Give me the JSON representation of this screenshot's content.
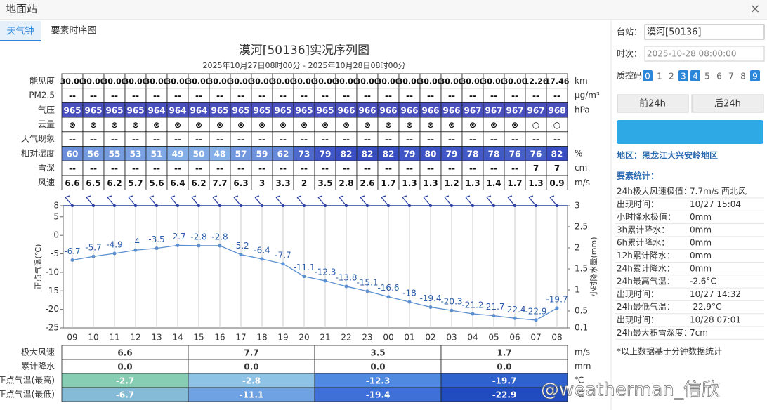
{
  "header": {
    "title": "地面站",
    "close": "×"
  },
  "tabs": [
    "天气钟",
    "要素时序图"
  ],
  "chart_data": {
    "type": "line",
    "title": "漠河[50136]实况序列图",
    "subtitle": "2025年10月27日08时00分 - 2025年10月28日08时00分",
    "y_label": "正点气温(℃)",
    "y2_label": "小时降水量(mm)",
    "categories": [
      "09",
      "10",
      "11",
      "12",
      "13",
      "14",
      "15",
      "16",
      "17",
      "18",
      "19",
      "20",
      "21",
      "22",
      "23",
      "00",
      "01",
      "02",
      "03",
      "04",
      "05",
      "06",
      "07",
      "08"
    ],
    "series": [
      {
        "name": "正点气温",
        "color": "#5b8fd0",
        "values": [
          -6.7,
          -5.7,
          -4.9,
          -4,
          -3.5,
          -2.7,
          -2.8,
          -2.8,
          -5.2,
          -6.4,
          -7.7,
          -11.1,
          -12.3,
          -13.8,
          -15.1,
          -16.6,
          -18,
          -19.4,
          -20.3,
          -21.2,
          -21.7,
          -22.4,
          -22.9,
          -19.7
        ]
      }
    ],
    "ylim": [
      -25,
      8
    ],
    "yticks": [
      8,
      5,
      0,
      -5,
      -10,
      -15,
      -20,
      -25
    ],
    "y2lim": [
      0.1,
      3
    ],
    "y2ticks": [
      3,
      2.5,
      2,
      1.5,
      1,
      0.5,
      0.1
    ],
    "grid": true
  },
  "obs_table": {
    "rows": [
      {
        "label": "能见度",
        "unit": "km",
        "values": [
          "30.00",
          "30.00",
          "30.00",
          "30.00",
          "30.00",
          "30.00",
          "30.00",
          "30.00",
          "30.00",
          "30.00",
          "30.00",
          "30.00",
          "30.00",
          "30.00",
          "30.00",
          "30.00",
          "30.00",
          "30.00",
          "30.00",
          "30.00",
          "30.00",
          "30.00",
          "12.26",
          "17.46"
        ]
      },
      {
        "label": "PM2.5",
        "unit": "μg/m³",
        "values": [
          "--",
          "--",
          "--",
          "--",
          "--",
          "--",
          "--",
          "--",
          "--",
          "--",
          "--",
          "--",
          "--",
          "--",
          "--",
          "--",
          "--",
          "--",
          "--",
          "--",
          "--",
          "--",
          "--",
          "--"
        ]
      },
      {
        "label": "气压",
        "unit": "hPa",
        "values": [
          "965",
          "965",
          "965",
          "965",
          "964",
          "964",
          "964",
          "965",
          "965",
          "965",
          "965",
          "965",
          "965",
          "966",
          "966",
          "966",
          "966",
          "966",
          "966",
          "967",
          "967",
          "967",
          "967",
          "968"
        ]
      },
      {
        "label": "云量",
        "unit": "",
        "values": [
          "⊗",
          "⊗",
          "⊗",
          "⊗",
          "⊗",
          "⊗",
          "⊗",
          "⊗",
          "⊗",
          "⊗",
          "⊗",
          "⊗",
          "⊗",
          "⊗",
          "⊗",
          "⊗",
          "⊗",
          "⊗",
          "⊗",
          "⊗",
          "⊗",
          "⊗",
          "○",
          "○"
        ]
      },
      {
        "label": "天气现象",
        "unit": "",
        "values": [
          "--",
          "--",
          "--",
          "--",
          "--",
          "--",
          "--",
          "--",
          "--",
          "--",
          "--",
          "--",
          "--",
          "--",
          "--",
          "--",
          "--",
          "--",
          "--",
          "--",
          "--",
          "--",
          "--",
          "--"
        ]
      },
      {
        "label": "相对湿度",
        "unit": "%",
        "values": [
          "60",
          "56",
          "55",
          "53",
          "51",
          "49",
          "50",
          "48",
          "57",
          "59",
          "62",
          "73",
          "79",
          "82",
          "82",
          "82",
          "79",
          "80",
          "79",
          "78",
          "78",
          "76",
          "76",
          "82"
        ]
      },
      {
        "label": "雪深",
        "unit": "cm",
        "values": [
          "--",
          "--",
          "--",
          "--",
          "--",
          "--",
          "--",
          "--",
          "--",
          "--",
          "--",
          "--",
          "--",
          "--",
          "--",
          "--",
          "--",
          "--",
          "--",
          "--",
          "--",
          "--",
          "7",
          "7"
        ]
      },
      {
        "label": "风速",
        "unit": "m/s",
        "values": [
          "6.6",
          "6.5",
          "6.2",
          "5.7",
          "5.6",
          "6.4",
          "6.2",
          "7.7",
          "6.3",
          "3",
          "3.3",
          "2",
          "3.5",
          "2.8",
          "2.6",
          "1.7",
          "1.3",
          "1.3",
          "1.2",
          "1.3",
          "1.4",
          "1.7",
          "1.3",
          "0.9"
        ]
      }
    ]
  },
  "summary_table": {
    "rows": [
      {
        "label": "极大风速",
        "unit": "m/s",
        "values": [
          "6.6",
          "7.7",
          "3.5",
          "1.7"
        ],
        "colors": [
          "#ffffff",
          "#ffffff",
          "#ffffff",
          "#ffffff"
        ]
      },
      {
        "label": "累计降水",
        "unit": "mm",
        "values": [
          "0.0",
          "0.0",
          "0.0",
          "0.0"
        ],
        "colors": [
          "#ffffff",
          "#ffffff",
          "#ffffff",
          "#ffffff"
        ]
      },
      {
        "label": "正点气温(最高)",
        "unit": "℃",
        "values": [
          "-2.7",
          "-2.8",
          "-12.3",
          "-19.7"
        ],
        "colors": [
          "#86cdb4",
          "#8ec3e6",
          "#4f8ae0",
          "#2f62cc"
        ]
      },
      {
        "label": "正点气温(最低)",
        "unit": "℃",
        "values": [
          "-6.7",
          "-11.1",
          "-19.4",
          "-22.9"
        ],
        "colors": [
          "#86bbd8",
          "#6fa2e2",
          "#3f70d8",
          "#214cc0"
        ]
      }
    ]
  },
  "side": {
    "station_label": "台站：",
    "station": "漠河[50136]",
    "time_label": "时次：",
    "time": "2025-10-28 08:00:00",
    "qc_label": "质控码：",
    "qc_codes": [
      {
        "label": "0",
        "active": true
      },
      {
        "label": "1",
        "active": false
      },
      {
        "label": "2",
        "active": false
      },
      {
        "label": "3",
        "active": true
      },
      {
        "label": "4",
        "active": true
      },
      {
        "label": "5",
        "active": false
      },
      {
        "label": "6",
        "active": false
      },
      {
        "label": "7",
        "active": false
      },
      {
        "label": "8",
        "active": false
      },
      {
        "label": "9",
        "active": true
      }
    ],
    "prev": "前24h",
    "next": "后24h",
    "region": "地区：黑龙江大兴安岭地区",
    "stats_title": "要素统计：",
    "stats": [
      {
        "label": "24h极大风速极值：",
        "value": "7.7m/s 西北风"
      },
      {
        "label": "出现时间：",
        "value": "10/27 15:04"
      },
      {
        "label": "小时降水极值：",
        "value": "0mm"
      },
      {
        "label": "3h累计降水：",
        "value": "0mm"
      },
      {
        "label": "6h累计降水：",
        "value": "0mm"
      },
      {
        "label": "12h累计降水：",
        "value": "0mm"
      },
      {
        "label": "24h累计降水：",
        "value": "0mm"
      },
      {
        "label": "24h最高气温：",
        "value": "-2.6°C"
      },
      {
        "label": "出现时间：",
        "value": "10/27 14:32"
      },
      {
        "label": "24h最低气温：",
        "value": "-22.9°C"
      },
      {
        "label": "出现时间：",
        "value": "10/28 07:01"
      },
      {
        "label": "24h最大积雪深度：",
        "value": "7cm"
      }
    ],
    "note": "*以上数据基于分钟数据统计"
  },
  "watermark": "@weatherman_信欣"
}
